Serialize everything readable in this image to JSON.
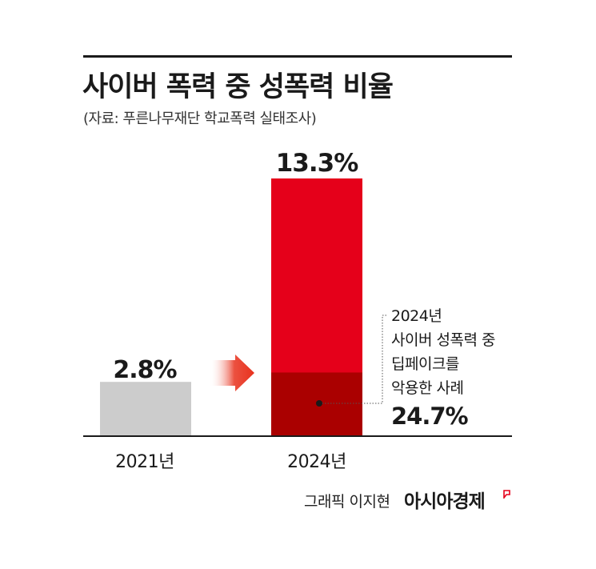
{
  "header": {
    "title": "사이버 폭력 중 성폭력 비율",
    "source": "(자료: 푸른나무재단 학교폭력 실태조사)"
  },
  "chart_data": {
    "type": "bar",
    "categories": [
      "2021년",
      "2024년"
    ],
    "values": [
      2.8,
      13.3
    ],
    "value_labels": [
      "2.8%",
      "13.3%"
    ],
    "sub_segment": {
      "category": "2024년",
      "share_percent": 24.7,
      "share_label": "24.7%",
      "annotation_lines": [
        "2024년",
        "사이버 성폭력 중",
        "딥페이크를",
        "악용한 사례"
      ]
    },
    "ylim": [
      0,
      13.3
    ],
    "grid": false,
    "colors": {
      "bar_2021": "#cccccc",
      "bar_2024": "#e5001a",
      "sub_segment": "#aa0000",
      "arrow": "#e8321e"
    }
  },
  "footer": {
    "credit": "그래픽 이지현",
    "brand": "아시아경제"
  }
}
